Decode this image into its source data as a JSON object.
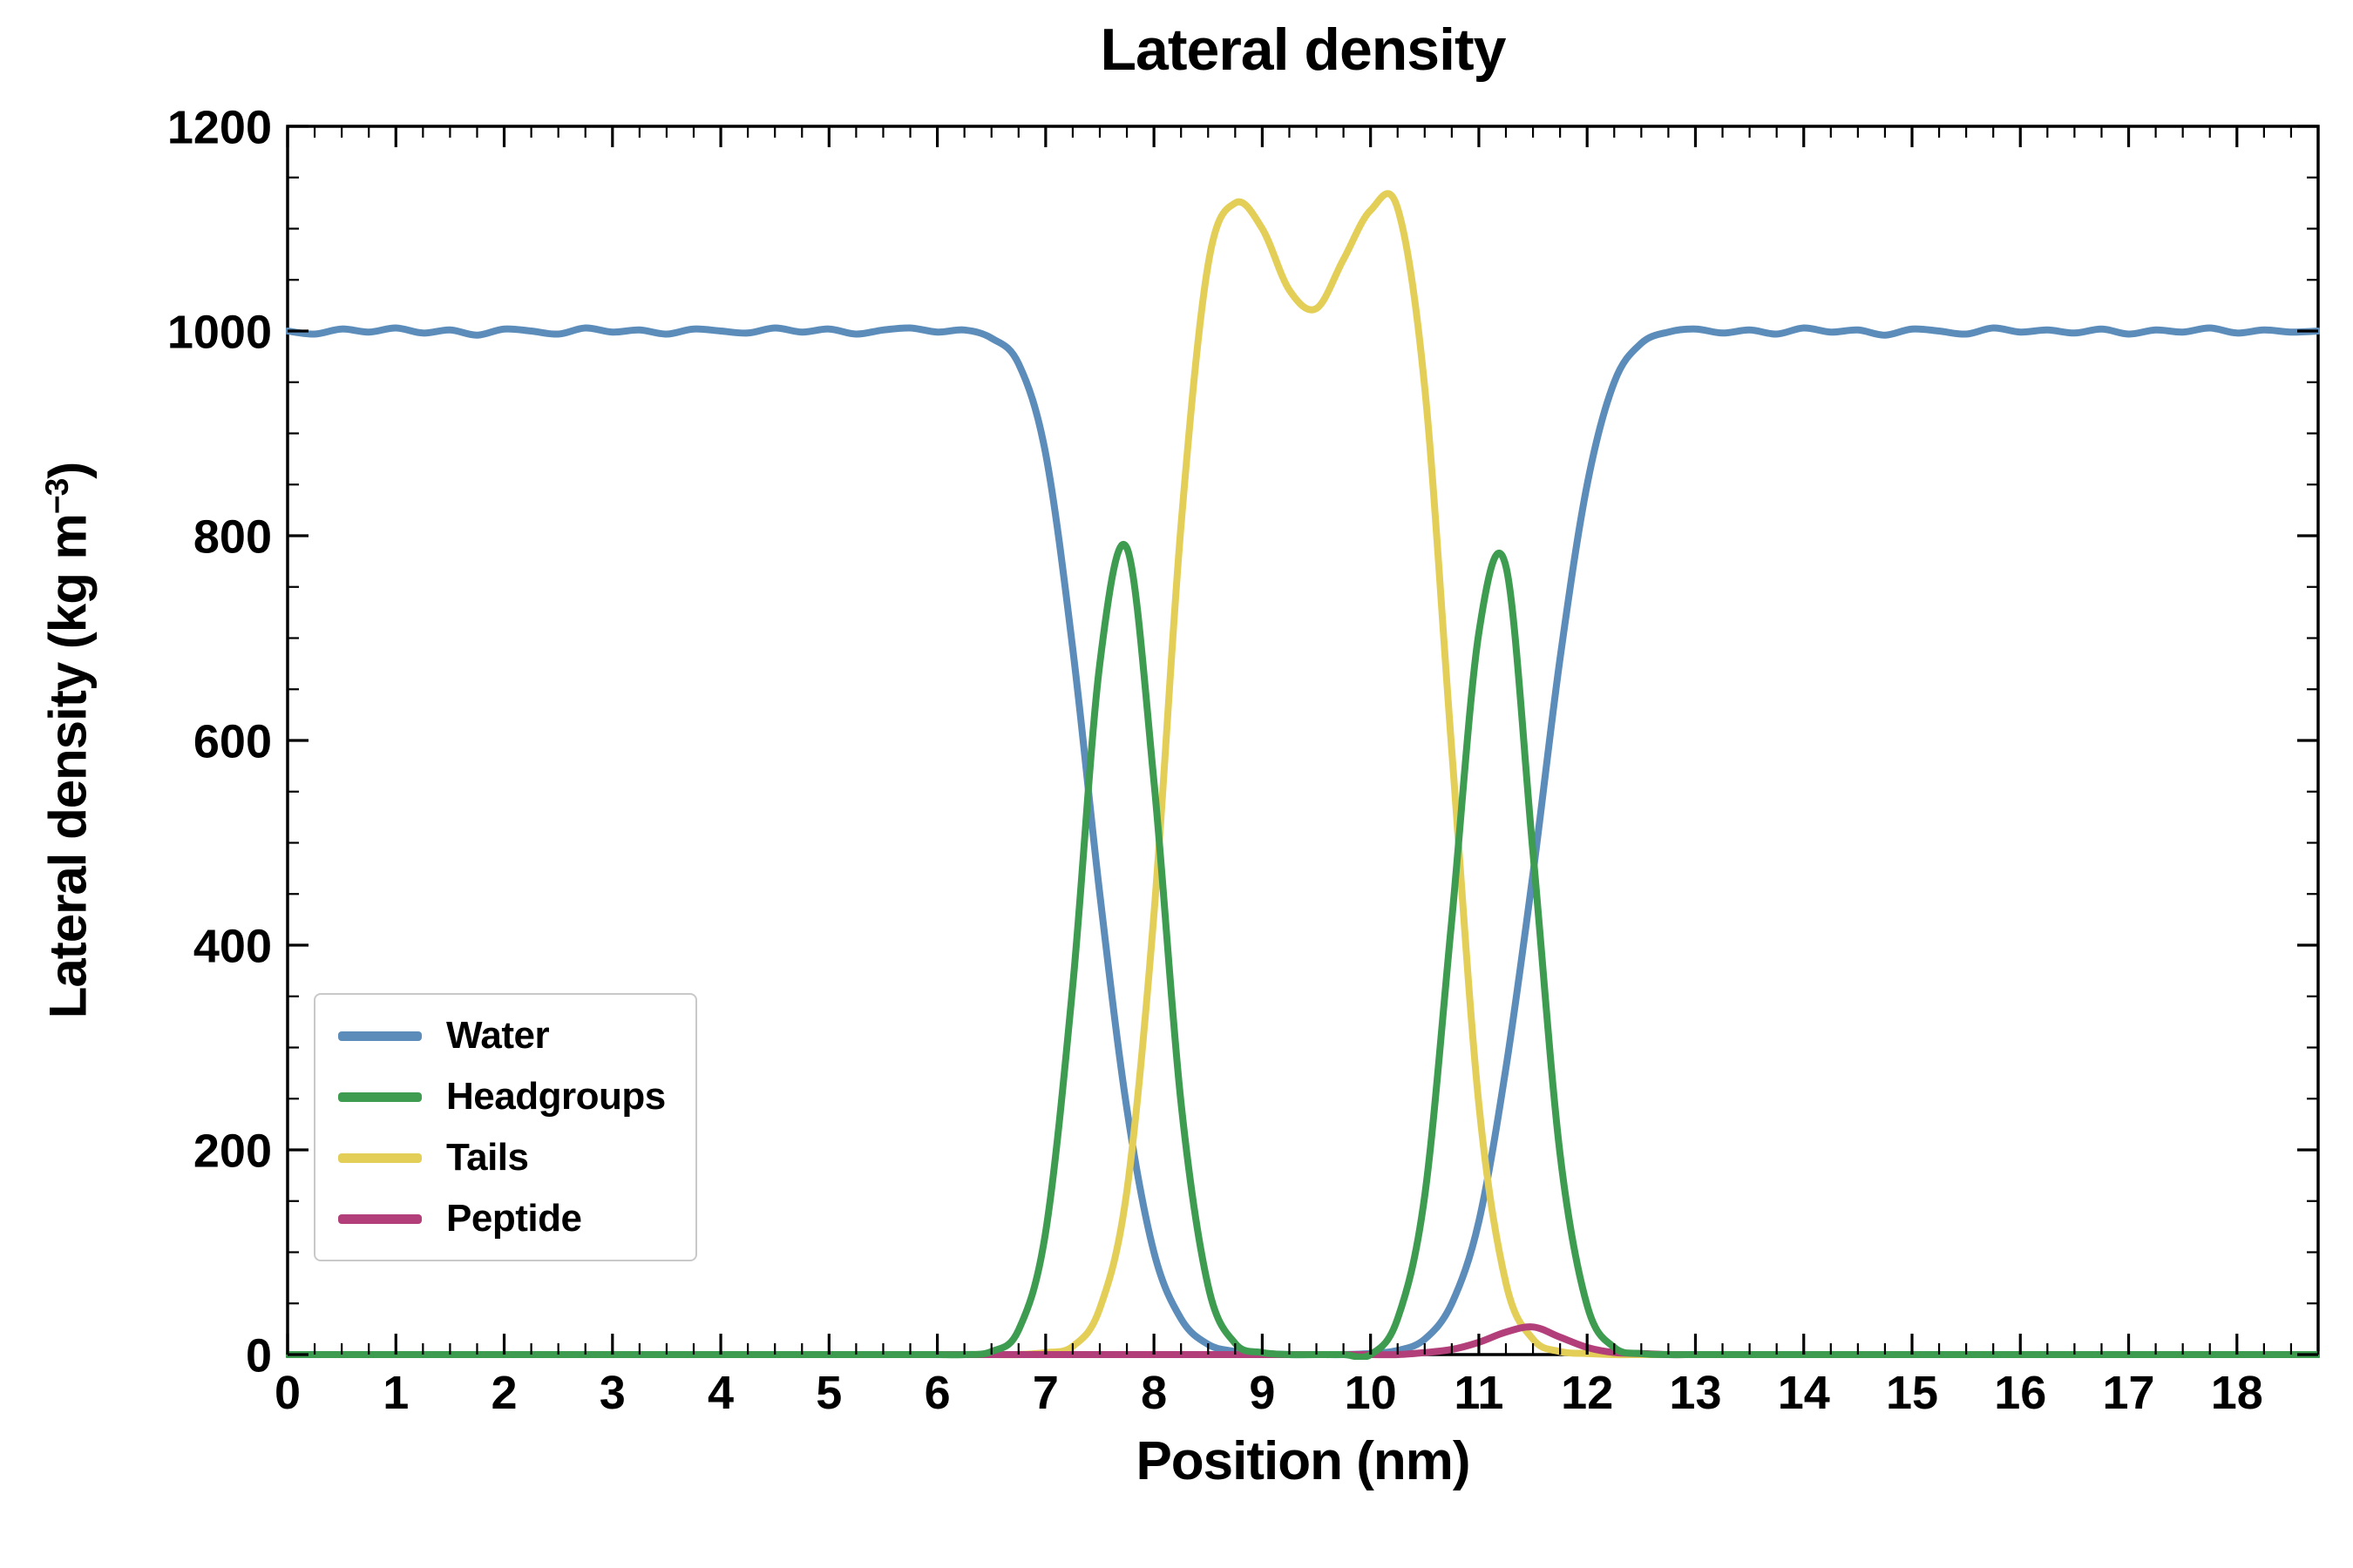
{
  "title": "Lateral density",
  "axes": {
    "xlabel": "Position (nm)",
    "ylabel_prefix": "Lateral density (kg m",
    "ylabel_sup": "−3",
    "ylabel_suffix": ")"
  },
  "chart_data": {
    "type": "line",
    "title": "Lateral density",
    "xlabel": "Position (nm)",
    "ylabel": "Lateral density (kg m⁻³)",
    "xlim": [
      0,
      18.75
    ],
    "ylim": [
      0,
      1200
    ],
    "xticks": [
      0,
      1,
      2,
      3,
      4,
      5,
      6,
      7,
      8,
      9,
      10,
      11,
      12,
      13,
      14,
      15,
      16,
      17,
      18
    ],
    "yticks": [
      0,
      200,
      400,
      600,
      800,
      1000,
      1200
    ],
    "x_minor_step": 0.25,
    "y_minor_step": 50,
    "grid": false,
    "legend_position": "lower left",
    "x": [
      0,
      0.25,
      0.5,
      0.75,
      1,
      1.25,
      1.5,
      1.75,
      2,
      2.25,
      2.5,
      2.75,
      3,
      3.25,
      3.5,
      3.75,
      4,
      4.25,
      4.5,
      4.75,
      5,
      5.25,
      5.5,
      5.75,
      6,
      6.25,
      6.5,
      6.75,
      7,
      7.25,
      7.5,
      7.75,
      8,
      8.25,
      8.5,
      8.75,
      9,
      9.25,
      9.5,
      9.75,
      10,
      10.25,
      10.5,
      10.75,
      11,
      11.25,
      11.5,
      11.75,
      12,
      12.25,
      12.5,
      12.75,
      13,
      13.25,
      13.5,
      13.75,
      14,
      14.25,
      14.5,
      14.75,
      15,
      15.25,
      15.5,
      15.75,
      16,
      16.25,
      16.5,
      16.75,
      17,
      17.25,
      17.5,
      17.75,
      18,
      18.25,
      18.5,
      18.75
    ],
    "series": [
      {
        "name": "Water",
        "color": "#5b8cba",
        "values": [
          1000,
          997,
          1002,
          999,
          1003,
          998,
          1001,
          996,
          1002,
          1000,
          997,
          1003,
          999,
          1001,
          997,
          1002,
          1000,
          998,
          1003,
          999,
          1002,
          997,
          1001,
          1003,
          999,
          1001,
          993,
          968,
          880,
          690,
          450,
          240,
          100,
          35,
          10,
          3,
          1,
          0,
          0,
          0,
          1,
          4,
          15,
          50,
          130,
          280,
          470,
          680,
          850,
          950,
          988,
          999,
          1002,
          998,
          1001,
          997,
          1003,
          999,
          1001,
          996,
          1002,
          1000,
          997,
          1003,
          999,
          1001,
          998,
          1002,
          997,
          1001,
          999,
          1003,
          998,
          1001,
          999,
          1000
        ]
      },
      {
        "name": "Headgroups",
        "color": "#3d9c50",
        "values": [
          0,
          0,
          0,
          0,
          0,
          0,
          0,
          0,
          0,
          0,
          0,
          0,
          0,
          0,
          0,
          0,
          0,
          0,
          0,
          0,
          0,
          0,
          0,
          0,
          0,
          0,
          3,
          24,
          120,
          360,
          675,
          788,
          560,
          246,
          67,
          11,
          2,
          0,
          0,
          0,
          0,
          35,
          155,
          425,
          705,
          770,
          490,
          196,
          48,
          7,
          1,
          0,
          0,
          0,
          0,
          0,
          0,
          0,
          0,
          0,
          0,
          0,
          0,
          0,
          0,
          0,
          0,
          0,
          0,
          0,
          0,
          0,
          0,
          0,
          0,
          0
        ]
      },
      {
        "name": "Tails",
        "color": "#e3cf57",
        "values": [
          0,
          0,
          0,
          0,
          0,
          0,
          0,
          0,
          0,
          0,
          0,
          0,
          0,
          0,
          0,
          0,
          0,
          0,
          0,
          0,
          0,
          0,
          0,
          0,
          0,
          0,
          0,
          0,
          2,
          8,
          45,
          160,
          430,
          810,
          1065,
          1125,
          1100,
          1040,
          1022,
          1070,
          1118,
          1120,
          945,
          590,
          245,
          70,
          15,
          3,
          1,
          0,
          0,
          0,
          0,
          0,
          0,
          0,
          0,
          0,
          0,
          0,
          0,
          0,
          0,
          0,
          0,
          0,
          0,
          0,
          0,
          0,
          0,
          0,
          0,
          0,
          0,
          0
        ]
      },
      {
        "name": "Peptide",
        "color": "#b23e7a",
        "values": [
          0,
          0,
          0,
          0,
          0,
          0,
          0,
          0,
          0,
          0,
          0,
          0,
          0,
          0,
          0,
          0,
          0,
          0,
          0,
          0,
          0,
          0,
          0,
          0,
          0,
          0,
          0,
          0,
          0,
          0,
          0,
          0,
          0,
          0,
          0,
          0,
          0,
          0,
          0,
          0,
          0,
          0,
          2,
          5,
          12,
          22,
          27,
          17,
          7,
          2,
          1,
          0,
          0,
          0,
          0,
          0,
          0,
          0,
          0,
          0,
          0,
          0,
          0,
          0,
          0,
          0,
          0,
          0,
          0,
          0,
          0,
          0,
          0,
          0,
          0,
          0
        ]
      }
    ]
  }
}
